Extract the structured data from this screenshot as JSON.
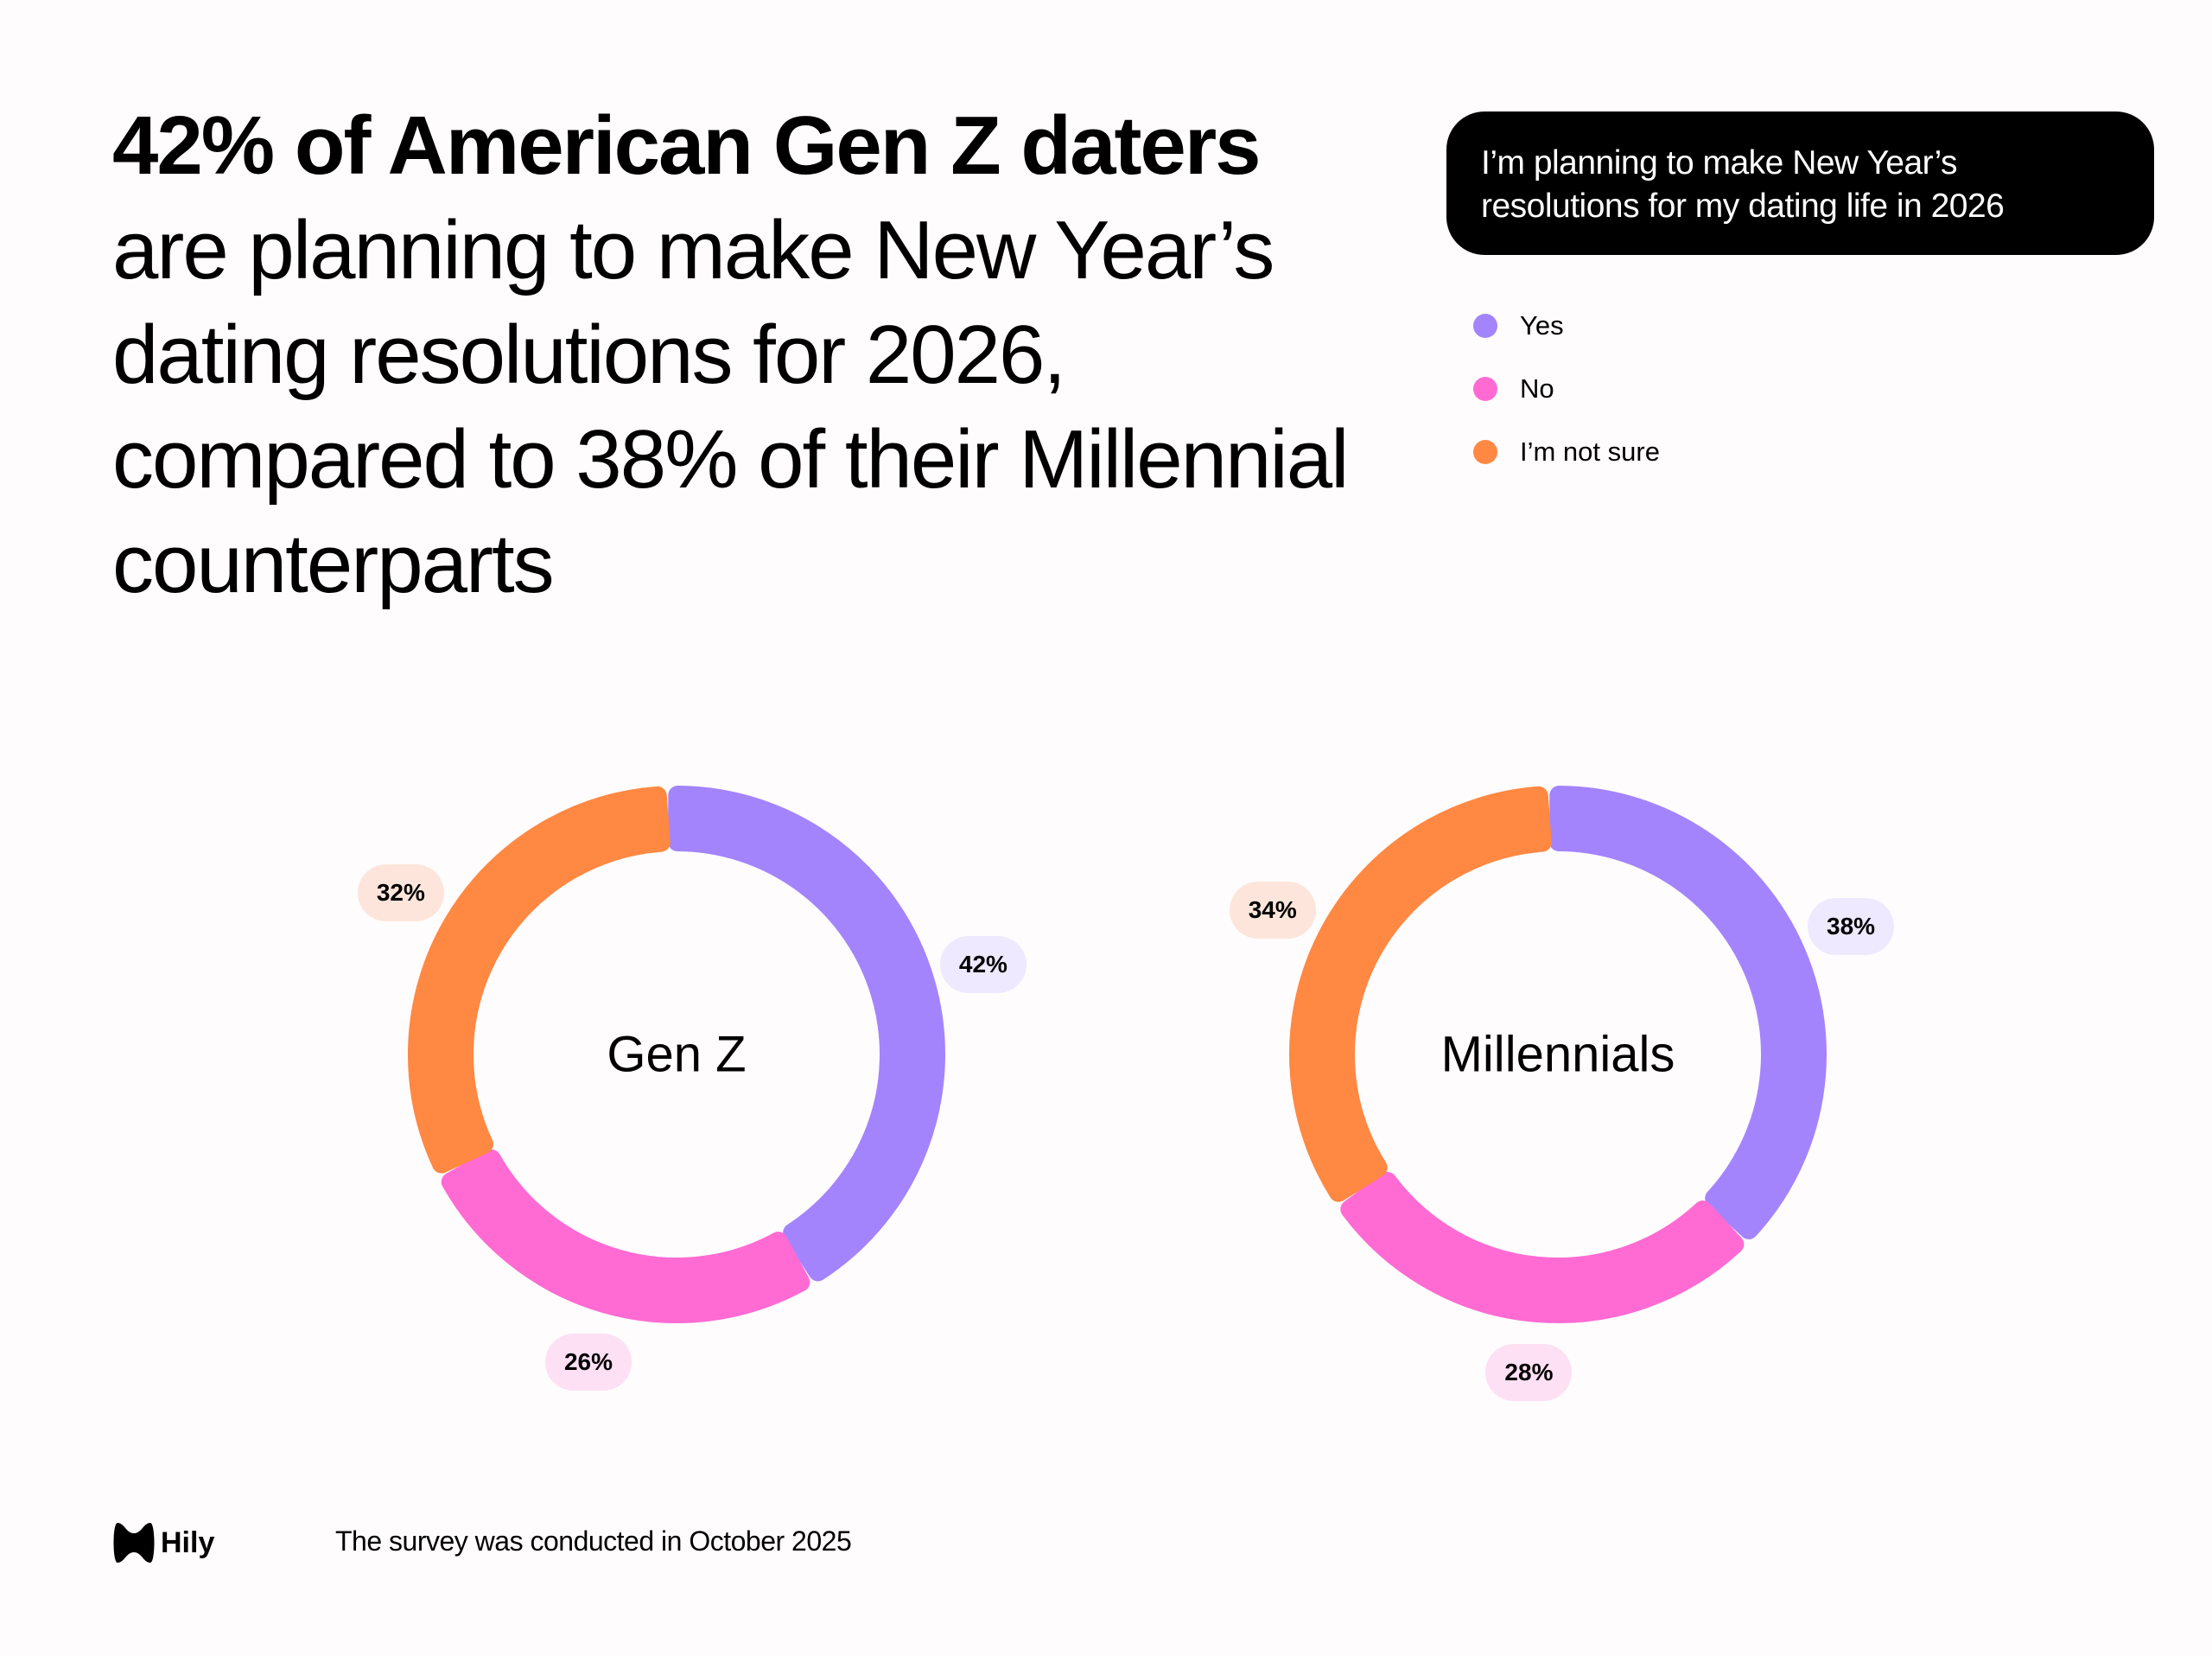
{
  "headline": {
    "bold": "42% of American Gen Z daters",
    "rest": "are planning to make New Year’s dating resolutions for 2026, compared to 38% of their Millennial counterparts"
  },
  "question": "I’m planning to make New Year’s resolutions for my dating life in 2026",
  "legend": [
    {
      "label": "Yes",
      "color": "#a384fd"
    },
    {
      "label": "No",
      "color": "#ff6bd3"
    },
    {
      "label": "I’m not sure",
      "color": "#ff8842"
    }
  ],
  "chart_data": [
    {
      "type": "pie",
      "variant": "donut",
      "center_label": "Gen Z",
      "categories": [
        "Yes",
        "No",
        "I’m not sure"
      ],
      "values": [
        42,
        26,
        32
      ],
      "data_labels": [
        "42%",
        "26%",
        "32%"
      ]
    },
    {
      "type": "pie",
      "variant": "donut",
      "center_label": "Millennials",
      "categories": [
        "Yes",
        "No",
        "I’m not sure"
      ],
      "values": [
        38,
        28,
        34
      ],
      "data_labels": [
        "38%",
        "28%",
        "34%"
      ]
    }
  ],
  "label_bg_colors": [
    "#efe9ff",
    "#fde0f4",
    "#fde5db"
  ],
  "footer": {
    "logo": "Hily",
    "note": "The survey was conducted in October 2025"
  }
}
